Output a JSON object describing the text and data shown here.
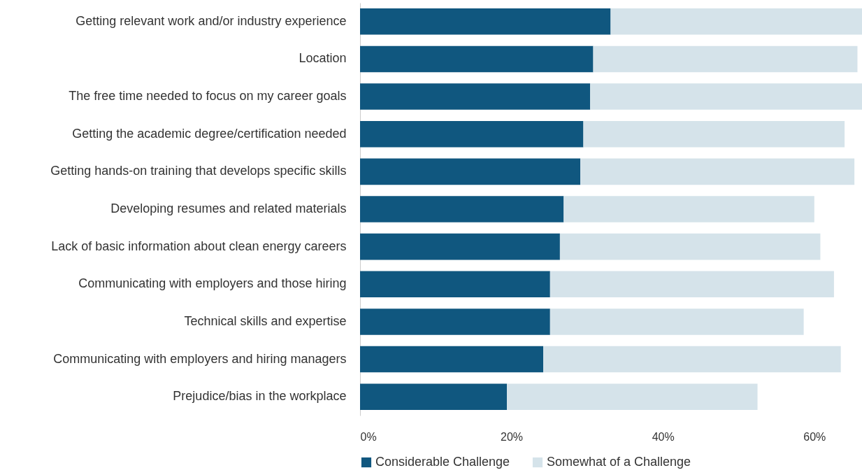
{
  "chart_data": {
    "type": "bar",
    "orientation": "horizontal",
    "stacked": true,
    "categories": [
      "Getting relevant work and/or industry experience",
      "Location",
      "The free time needed to focus on my career goals",
      "Getting the academic degree/certification needed",
      "Getting hands-on training that develops specific skills",
      "Developing resumes and related materials",
      "Lack of basic information about clean energy careers",
      "Communicating with employers and those hiring",
      "Technical skills and expertise",
      "Communicating with employers and hiring managers",
      "Prejudice/bias in the workplace"
    ],
    "series": [
      {
        "name": "Considerable Challenge",
        "color": "#10577f",
        "values": [
          33.1,
          30.8,
          30.4,
          29.5,
          29.1,
          26.9,
          26.4,
          25.1,
          25.1,
          24.2,
          19.4
        ]
      },
      {
        "name": "Somewhat of a Challenge",
        "color": "#d5e3ea",
        "values": [
          33.2,
          34.9,
          35.9,
          34.5,
          36.2,
          33.1,
          34.4,
          37.5,
          33.5,
          39.3,
          33.1
        ]
      }
    ],
    "xlim": [
      0,
      66.3
    ],
    "xticks": [
      {
        "value": 0,
        "label": "0%"
      },
      {
        "value": 20,
        "label": "20%"
      },
      {
        "value": 40,
        "label": "40%"
      },
      {
        "value": 60,
        "label": "60%"
      }
    ],
    "grid": false,
    "legend": "bottom"
  }
}
